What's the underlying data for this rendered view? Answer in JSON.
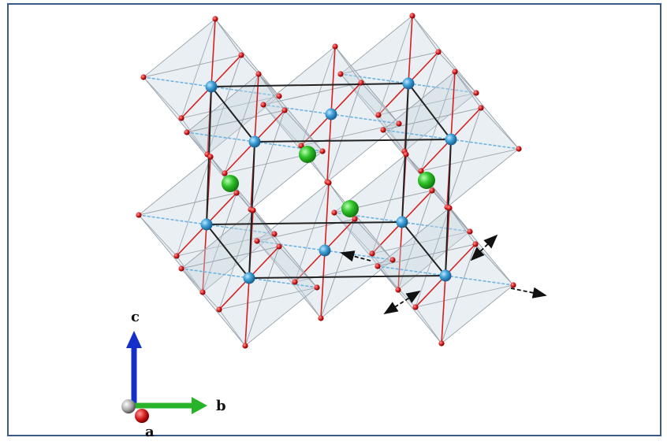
{
  "axes": {
    "c": "c",
    "b": "b",
    "a": "a"
  }
}
